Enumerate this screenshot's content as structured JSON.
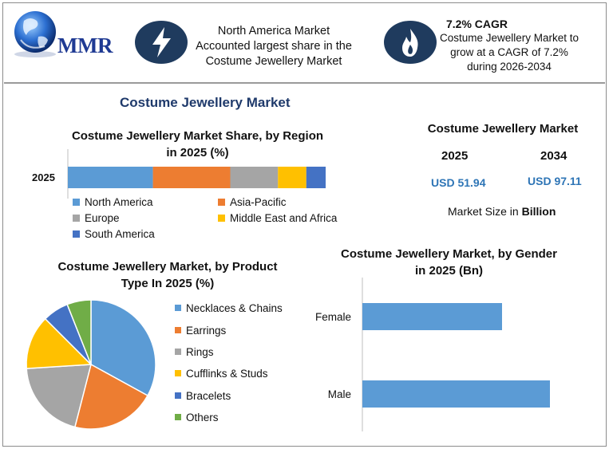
{
  "brand": {
    "logo_text": "MMR"
  },
  "header": {
    "highlight_text": [
      "North America Market",
      "Accounted largest share in the",
      "Costume Jewellery Market"
    ],
    "cagr_title": "7.2% CAGR",
    "cagr_text": [
      "Costume Jewellery Market to",
      "grow at a CAGR of 7.2%",
      "during 2026-2034"
    ]
  },
  "main_title": "Costume Jewellery Market",
  "market_size": {
    "title": "Costume Jewellery Market",
    "year_a": "2025",
    "year_b": "2034",
    "value_a": "USD 51.94",
    "value_b": "USD 97.11",
    "note_prefix": "Market Size in ",
    "note_bold": "Billion"
  },
  "colors": {
    "blue": "#5b9bd5",
    "orange": "#ed7d31",
    "gray": "#a5a5a5",
    "yellow": "#ffc000",
    "darkblue": "#4472c4",
    "green": "#70ad47",
    "navy_badge": "#1f3b5e",
    "title_navy": "#1f3a6b"
  },
  "chart_data": [
    {
      "type": "bar",
      "orientation": "horizontal-stacked",
      "title": "Costume Jewellery Market Share, by Region in 2025 (%)",
      "title_lines": [
        "Costume Jewellery Market Share, by Region",
        "in 2025 (%)"
      ],
      "categories": [
        "2025"
      ],
      "series": [
        {
          "name": "North America",
          "values": [
            33
          ]
        },
        {
          "name": "Asia-Pacific",
          "values": [
            30
          ]
        },
        {
          "name": "Europe",
          "values": [
            18.5
          ]
        },
        {
          "name": "Middle East and Africa",
          "values": [
            11
          ]
        },
        {
          "name": "South America",
          "values": [
            7.5
          ]
        }
      ],
      "xlim": [
        0,
        100
      ],
      "legend": "bottom"
    },
    {
      "type": "pie",
      "title": "Costume Jewellery Market, by Product Type In 2025 (%)",
      "title_lines": [
        "Costume Jewellery Market, by Product",
        "Type In 2025 (%)"
      ],
      "labels": [
        "Necklaces & Chains",
        "Earrings",
        "Rings",
        "Cufflinks & Studs",
        "Bracelets",
        "Others"
      ],
      "values": [
        33,
        21,
        20,
        13.5,
        6.5,
        6
      ],
      "legend": "right"
    },
    {
      "type": "bar",
      "orientation": "horizontal",
      "title": "Costume Jewellery Market, by Gender in 2025 (Bn)",
      "title_lines": [
        "Costume Jewellery Market, by Gender",
        "in 2025 (Bn)"
      ],
      "categories": [
        "Female",
        "Male"
      ],
      "values": [
        17.5,
        23.5
      ],
      "xlim": [
        0,
        28
      ],
      "grid": false
    }
  ]
}
